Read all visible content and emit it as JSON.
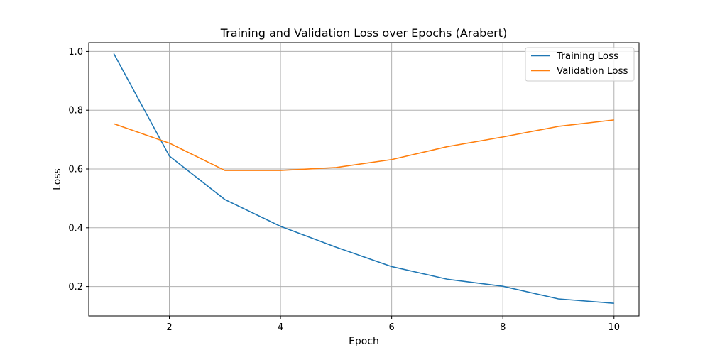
{
  "chart_data": {
    "type": "line",
    "title": "Training and Validation Loss over Epochs (Arabert)",
    "xlabel": "Epoch",
    "ylabel": "Loss",
    "x": [
      1,
      2,
      3,
      4,
      5,
      6,
      7,
      8,
      9,
      10
    ],
    "xlim": [
      0.55,
      10.45
    ],
    "ylim": [
      0.1,
      1.03
    ],
    "xticks": [
      2,
      4,
      6,
      8,
      10
    ],
    "yticks": [
      0.2,
      0.4,
      0.6,
      0.8,
      1.0
    ],
    "xtick_labels": [
      "2",
      "4",
      "6",
      "8",
      "10"
    ],
    "ytick_labels": [
      "0.2",
      "0.4",
      "0.6",
      "0.8",
      "1.0"
    ],
    "grid": true,
    "legend_position": "top-right",
    "series": [
      {
        "name": "Training Loss",
        "color": "#1f77b4",
        "values": [
          0.993,
          0.644,
          0.496,
          0.405,
          0.334,
          0.268,
          0.225,
          0.201,
          0.158,
          0.143
        ]
      },
      {
        "name": "Validation Loss",
        "color": "#ff7f0e",
        "values": [
          0.754,
          0.688,
          0.595,
          0.595,
          0.605,
          0.632,
          0.676,
          0.709,
          0.745,
          0.767
        ]
      }
    ]
  }
}
